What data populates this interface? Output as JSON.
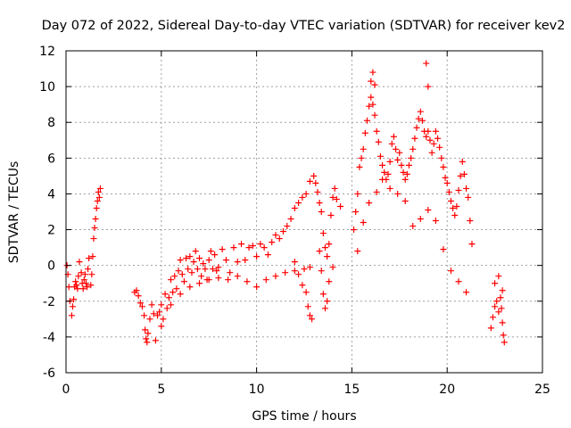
{
  "chart_data": {
    "type": "scatter",
    "title": "Day 072 of 2022, Sidereal Day-to-day VTEC variation (SDTVAR) for receiver kev2",
    "xlabel": "GPS time / hours",
    "ylabel": "SDTVAR / TECUs",
    "xlim": [
      0,
      25
    ],
    "ylim": [
      -6,
      12
    ],
    "xticks": [
      0,
      5,
      10,
      15,
      20,
      25
    ],
    "yticks": [
      -6,
      -4,
      -2,
      0,
      2,
      4,
      6,
      8,
      10,
      12
    ],
    "grid": true,
    "marker": "+",
    "series_color": "#ff0000",
    "series": [
      {
        "name": "SDTVAR",
        "x": [
          0.05,
          0.1,
          0.15,
          0.2,
          0.3,
          0.35,
          0.4,
          0.45,
          0.5,
          0.55,
          0.6,
          0.65,
          0.7,
          0.8,
          0.85,
          0.9,
          0.95,
          1.0,
          1.05,
          1.1,
          1.15,
          1.2,
          1.3,
          1.35,
          1.4,
          1.45,
          1.5,
          1.55,
          1.6,
          1.65,
          1.7,
          1.75,
          1.8,
          3.6,
          3.7,
          3.8,
          3.9,
          4.0,
          4.1,
          4.15,
          4.2,
          4.25,
          4.3,
          4.4,
          4.5,
          4.6,
          4.7,
          4.8,
          4.9,
          5.0,
          5.1,
          5.2,
          5.3,
          5.4,
          5.5,
          5.6,
          5.7,
          5.8,
          5.9,
          6.0,
          6.1,
          6.2,
          6.3,
          6.4,
          6.5,
          6.6,
          6.7,
          6.8,
          6.9,
          7.0,
          7.1,
          7.2,
          7.3,
          7.4,
          7.5,
          7.6,
          7.7,
          7.8,
          7.9,
          8.0,
          8.2,
          8.4,
          8.6,
          8.8,
          9.0,
          9.2,
          9.4,
          9.6,
          9.8,
          10.0,
          10.2,
          10.4,
          10.6,
          10.8,
          11.0,
          11.2,
          11.4,
          11.6,
          11.8,
          12.0,
          12.2,
          12.4,
          12.6,
          12.8,
          13.0,
          13.1,
          13.2,
          13.3,
          13.4,
          13.5,
          13.6,
          13.7,
          13.8,
          13.9,
          14.0,
          14.1,
          14.2,
          14.4,
          5.0,
          5.5,
          6.0,
          6.5,
          7.0,
          7.5,
          8.0,
          8.5,
          9.0,
          9.5,
          10.0,
          10.5,
          11.0,
          11.5,
          12.0,
          12.5,
          12.8,
          12.0,
          12.2,
          12.4,
          12.6,
          12.7,
          12.8,
          12.9,
          13.3,
          13.4,
          13.5,
          13.6,
          13.7,
          13.8,
          14.0,
          15.1,
          15.2,
          15.3,
          15.4,
          15.5,
          15.6,
          15.7,
          15.8,
          15.9,
          16.0,
          16.1,
          16.2,
          16.3,
          16.4,
          16.5,
          16.6,
          16.7,
          16.8,
          16.9,
          17.0,
          17.1,
          17.2,
          17.3,
          17.4,
          17.5,
          17.6,
          17.7,
          17.8,
          17.9,
          18.0,
          18.1,
          18.2,
          18.3,
          18.4,
          18.5,
          18.6,
          18.7,
          18.8,
          18.9,
          19.0,
          19.1,
          19.2,
          19.3,
          19.4,
          19.5,
          19.6,
          19.7,
          19.8,
          19.9,
          20.0,
          20.1,
          20.2,
          20.3,
          20.4,
          20.5,
          20.6,
          20.7,
          20.8,
          20.9,
          21.0,
          21.1,
          21.2,
          21.3,
          15.3,
          15.6,
          15.9,
          16.3,
          16.6,
          17.0,
          17.4,
          17.8,
          18.2,
          18.6,
          19.0,
          19.4,
          19.8,
          20.2,
          20.6,
          21.0,
          16.0,
          16.1,
          16.2,
          18.9,
          19.0,
          22.3,
          22.4,
          22.5,
          22.6,
          22.7,
          22.8,
          22.85,
          22.9,
          22.95,
          23.0,
          22.5,
          22.7,
          22.9
        ],
        "y": [
          0.0,
          -0.5,
          -1.2,
          -2.0,
          -2.8,
          -2.3,
          -1.9,
          -1.2,
          -0.9,
          -1.1,
          -1.3,
          -0.6,
          0.2,
          -0.4,
          -1.0,
          -1.3,
          -0.8,
          -0.5,
          -1.0,
          -1.2,
          -0.2,
          0.4,
          -1.1,
          -0.5,
          0.5,
          1.5,
          2.1,
          2.6,
          3.2,
          3.6,
          4.1,
          3.8,
          4.3,
          -1.5,
          -1.4,
          -1.7,
          -2.1,
          -2.3,
          -2.8,
          -3.6,
          -4.1,
          -4.3,
          -3.8,
          -3.0,
          -2.2,
          -2.7,
          -4.2,
          -2.8,
          -2.6,
          -2.2,
          -3.0,
          -1.6,
          -2.4,
          -1.8,
          -0.8,
          -1.5,
          -0.6,
          -1.3,
          -0.3,
          0.3,
          -0.5,
          -0.9,
          0.4,
          -0.2,
          0.5,
          -0.4,
          0.2,
          0.8,
          -0.2,
          0.4,
          -0.6,
          0.1,
          -0.2,
          -0.8,
          0.3,
          0.8,
          -0.2,
          0.6,
          -0.3,
          -0.1,
          0.9,
          0.3,
          -0.4,
          1.0,
          0.2,
          1.2,
          0.3,
          1.0,
          1.1,
          0.5,
          1.2,
          1.0,
          0.6,
          1.3,
          1.7,
          1.5,
          1.9,
          2.2,
          2.6,
          3.2,
          3.5,
          3.8,
          4.0,
          4.7,
          5.0,
          4.6,
          4.1,
          3.5,
          3.0,
          1.8,
          1.0,
          0.5,
          1.2,
          2.8,
          3.8,
          4.3,
          3.7,
          3.3,
          -3.4,
          -2.2,
          -1.6,
          -1.2,
          -1.0,
          -0.8,
          -0.7,
          -0.8,
          -0.6,
          -0.9,
          -1.2,
          -0.8,
          -0.6,
          -0.4,
          -0.3,
          -0.2,
          -0.1,
          0.2,
          -0.5,
          -1.1,
          -1.5,
          -2.3,
          -2.8,
          -3.0,
          0.8,
          -0.3,
          -1.6,
          -2.4,
          -2.0,
          -0.9,
          -0.1,
          2.0,
          3.0,
          4.0,
          5.5,
          6.0,
          6.5,
          7.4,
          8.1,
          8.9,
          9.4,
          9.0,
          8.4,
          7.5,
          6.9,
          6.1,
          5.6,
          5.2,
          4.8,
          5.1,
          5.8,
          6.8,
          7.2,
          6.5,
          5.9,
          6.3,
          5.6,
          5.2,
          4.8,
          5.1,
          5.6,
          6.0,
          6.5,
          7.1,
          7.7,
          8.2,
          8.6,
          8.1,
          7.5,
          7.2,
          7.5,
          7.0,
          6.3,
          6.8,
          7.5,
          7.1,
          6.6,
          6.0,
          5.5,
          4.9,
          4.6,
          4.1,
          3.6,
          3.2,
          2.8,
          3.3,
          4.2,
          5.0,
          5.8,
          5.1,
          4.3,
          3.8,
          2.5,
          1.2,
          0.8,
          2.4,
          3.5,
          4.1,
          4.8,
          4.3,
          4.0,
          3.6,
          2.2,
          2.6,
          3.1,
          2.5,
          0.9,
          -0.3,
          -0.9,
          -1.5,
          10.3,
          10.8,
          10.1,
          11.3,
          10.0,
          -3.5,
          -2.9,
          -2.3,
          -2.0,
          -2.6,
          -1.8,
          -2.4,
          -3.2,
          -3.9,
          -4.3,
          -1.0,
          -0.6,
          -1.4
        ]
      }
    ]
  }
}
